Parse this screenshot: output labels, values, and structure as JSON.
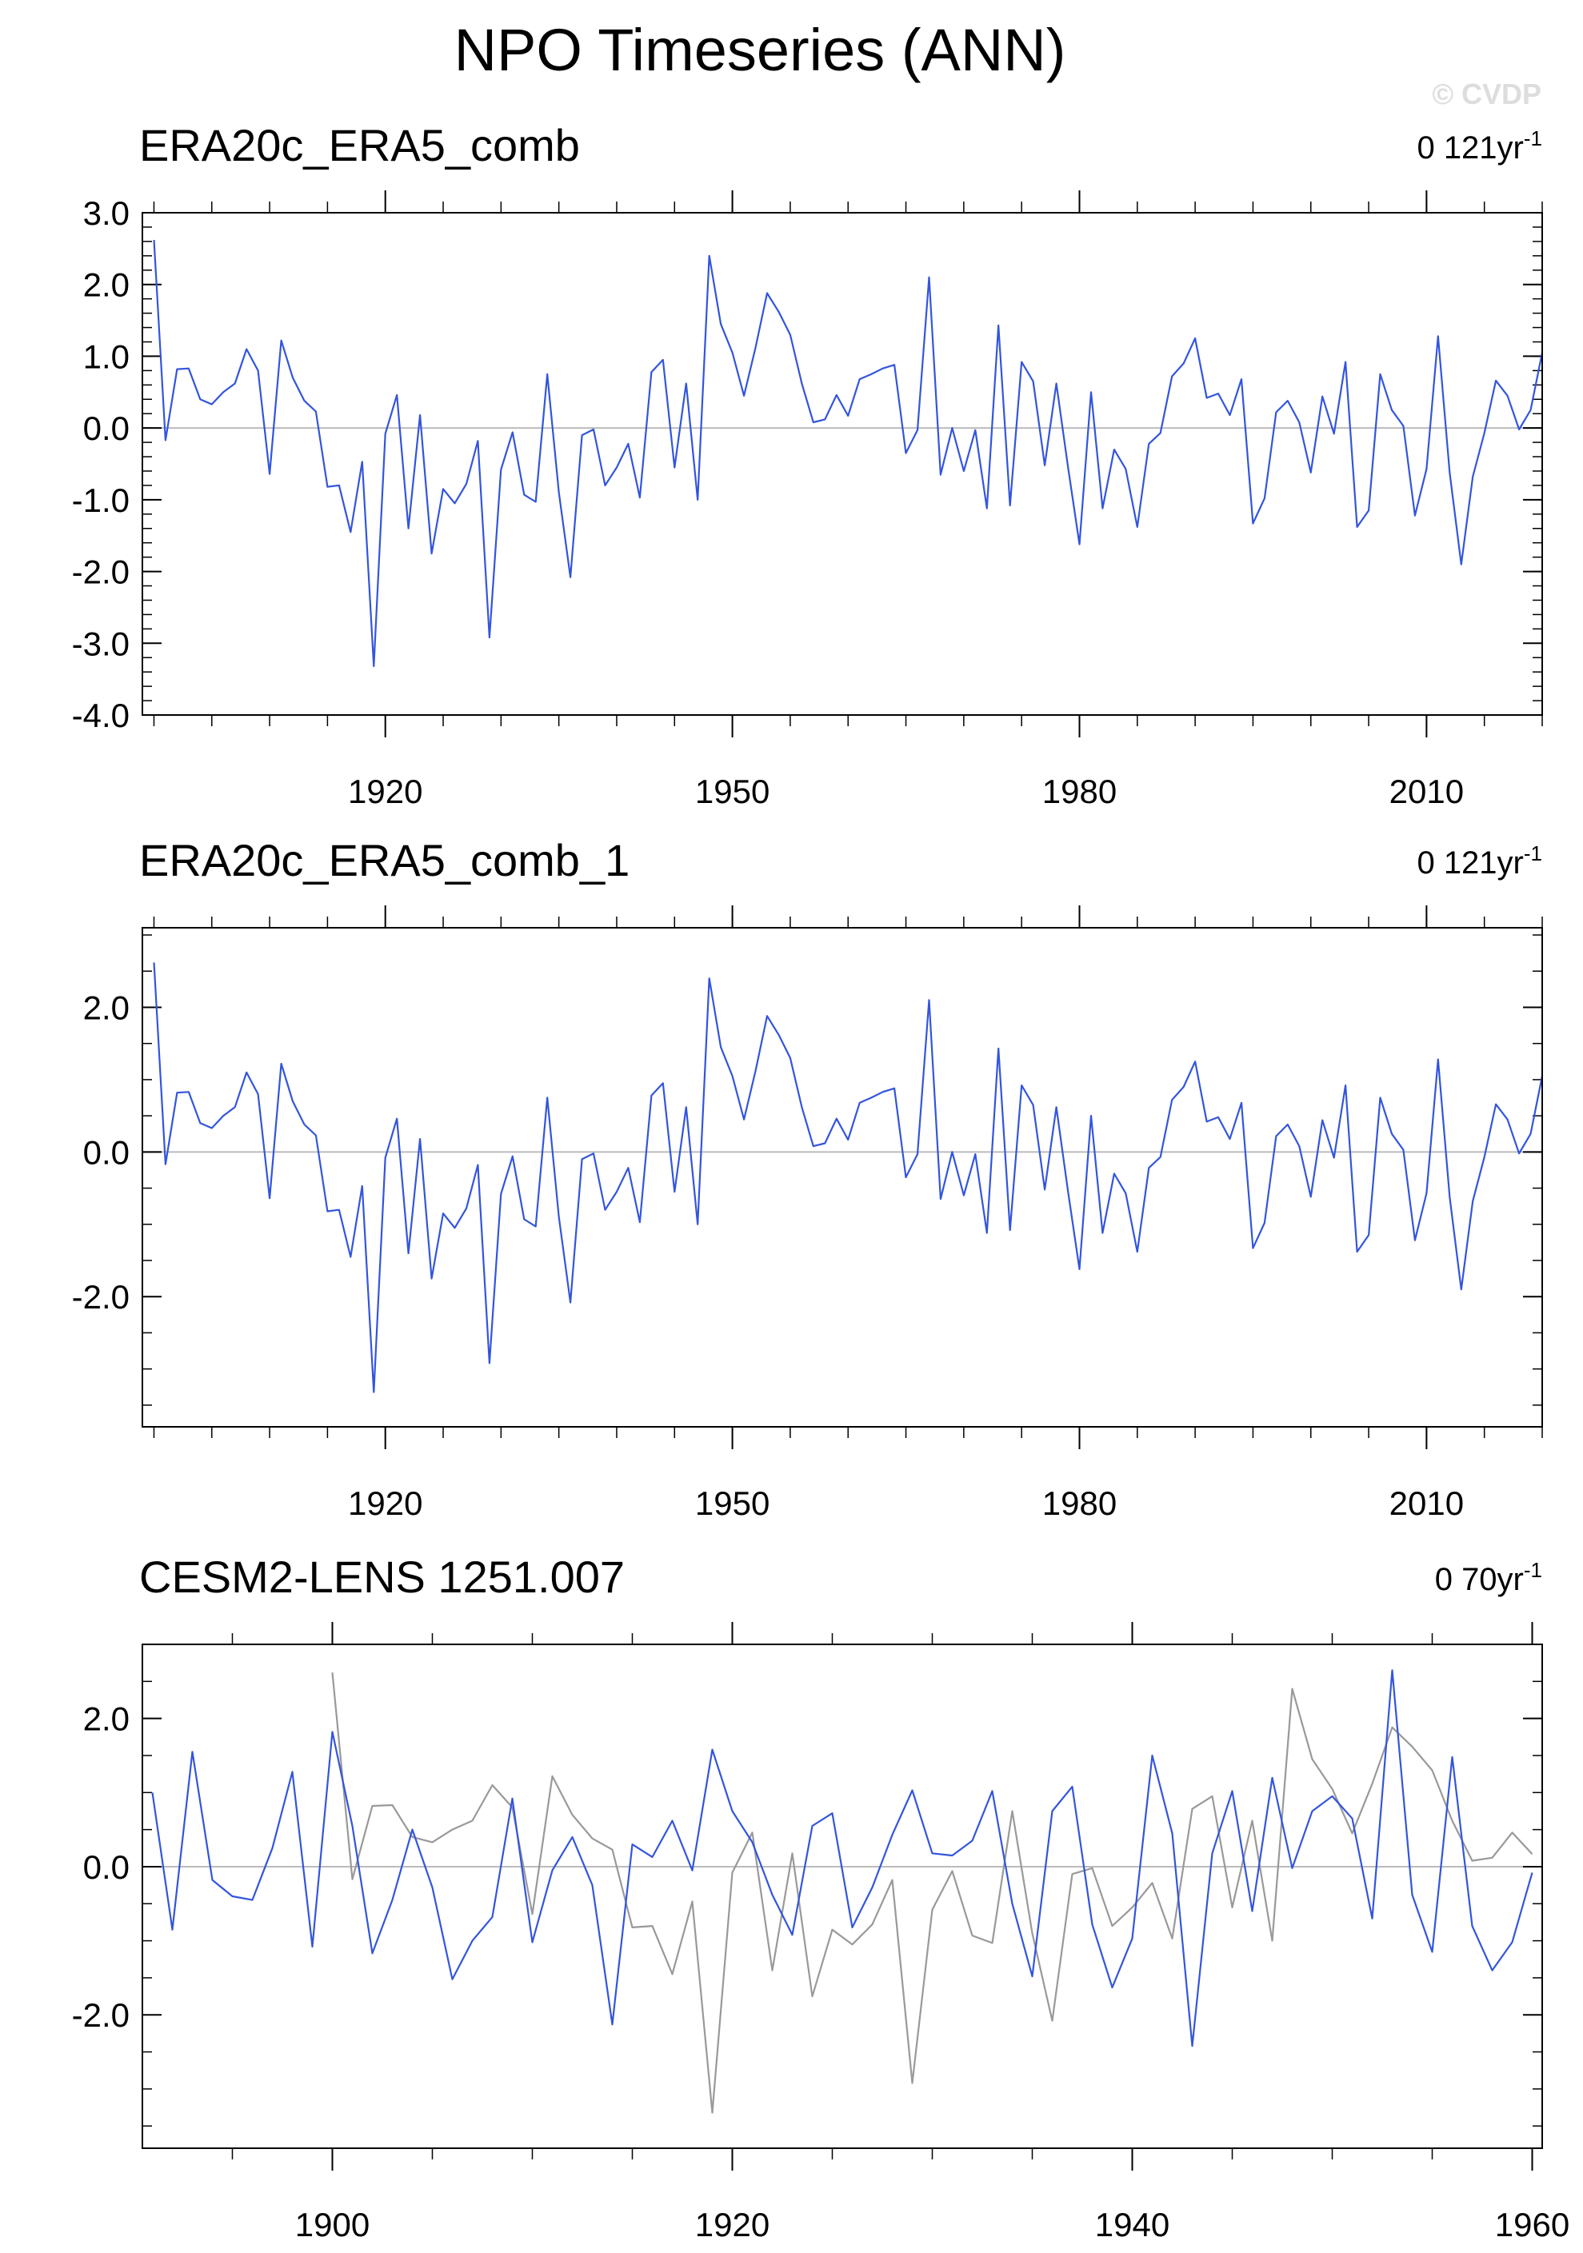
{
  "page": {
    "title": "NPO Timeseries (ANN)",
    "watermark": "© CVDP"
  },
  "chart_data": [
    {
      "type": "line",
      "title": "ERA20c_ERA5_comb",
      "trend_label": "0 121yr",
      "trend_exp": "-1",
      "xlim": [
        1899,
        2020
      ],
      "ylim": [
        -4.0,
        3.0
      ],
      "yticks": [
        -4.0,
        -3.0,
        -2.0,
        -1.0,
        0.0,
        1.0,
        2.0,
        3.0
      ],
      "yticklabels": [
        "-4.0",
        "-3.0",
        "-2.0",
        "-1.0",
        "0.0",
        "1.0",
        "2.0",
        "3.0"
      ],
      "xticks": [
        1920,
        1950,
        1980,
        2010
      ],
      "xticklabels": [
        "1920",
        "1950",
        "1980",
        "2010"
      ],
      "minor_x_step": 5,
      "minor_y_step": 0.2,
      "zero_line": true,
      "series": [
        {
          "color": "#3355dd",
          "x_start": 1900,
          "values": [
            2.62,
            -0.17,
            0.82,
            0.83,
            0.4,
            0.33,
            0.5,
            0.62,
            1.1,
            0.8,
            -0.64,
            1.22,
            0.7,
            0.38,
            0.23,
            -0.82,
            -0.8,
            -1.45,
            -0.47,
            -3.32,
            -0.08,
            0.46,
            -1.4,
            0.18,
            -1.75,
            -0.85,
            -1.05,
            -0.78,
            -0.18,
            -2.92,
            -0.58,
            -0.06,
            -0.93,
            -1.03,
            0.75,
            -0.9,
            -2.08,
            -0.1,
            -0.02,
            -0.8,
            -0.55,
            -0.22,
            -0.97,
            0.78,
            0.95,
            -0.55,
            0.62,
            -1.0,
            2.4,
            1.45,
            1.05,
            0.45,
            1.12,
            1.88,
            1.62,
            1.3,
            0.62,
            0.08,
            0.12,
            0.46,
            0.17,
            0.68,
            0.75,
            0.83,
            0.88,
            -0.35,
            -0.03,
            2.1,
            -0.65,
            0.0,
            -0.6,
            -0.03,
            -1.12,
            1.43,
            -1.08,
            0.92,
            0.65,
            -0.52,
            0.62,
            -0.53,
            -1.62,
            0.5,
            -1.12,
            -0.3,
            -0.57,
            -1.38,
            -0.22,
            -0.07,
            0.72,
            0.9,
            1.25,
            0.42,
            0.48,
            0.18,
            0.68,
            -1.33,
            -0.98,
            0.22,
            0.38,
            0.08,
            -0.62,
            0.44,
            -0.08,
            0.92,
            -1.38,
            -1.15,
            0.75,
            0.25,
            0.03,
            -1.22,
            -0.57,
            1.28,
            -0.62,
            -1.9,
            -0.68,
            -0.07,
            0.66,
            0.45,
            -0.02,
            0.25,
            1.05
          ]
        }
      ]
    },
    {
      "type": "line",
      "title": "ERA20c_ERA5_comb_1",
      "trend_label": "0 121yr",
      "trend_exp": "-1",
      "xlim": [
        1899,
        2020
      ],
      "ylim": [
        -3.8,
        3.1
      ],
      "yticks": [
        -2.0,
        0.0,
        2.0
      ],
      "yticklabels": [
        "-2.0",
        "0.0",
        "2.0"
      ],
      "xticks": [
        1920,
        1950,
        1980,
        2010
      ],
      "xticklabels": [
        "1920",
        "1950",
        "1980",
        "2010"
      ],
      "minor_x_step": 5,
      "minor_y_step": 0.5,
      "zero_line": true,
      "series": [
        {
          "color": "#3355dd",
          "x_start": 1900,
          "values": [
            2.62,
            -0.17,
            0.82,
            0.83,
            0.4,
            0.33,
            0.5,
            0.62,
            1.1,
            0.8,
            -0.64,
            1.22,
            0.7,
            0.38,
            0.23,
            -0.82,
            -0.8,
            -1.45,
            -0.47,
            -3.32,
            -0.08,
            0.46,
            -1.4,
            0.18,
            -1.75,
            -0.85,
            -1.05,
            -0.78,
            -0.18,
            -2.92,
            -0.58,
            -0.06,
            -0.93,
            -1.03,
            0.75,
            -0.9,
            -2.08,
            -0.1,
            -0.02,
            -0.8,
            -0.55,
            -0.22,
            -0.97,
            0.78,
            0.95,
            -0.55,
            0.62,
            -1.0,
            2.4,
            1.45,
            1.05,
            0.45,
            1.12,
            1.88,
            1.62,
            1.3,
            0.62,
            0.08,
            0.12,
            0.46,
            0.17,
            0.68,
            0.75,
            0.83,
            0.88,
            -0.35,
            -0.03,
            2.1,
            -0.65,
            0.0,
            -0.6,
            -0.03,
            -1.12,
            1.43,
            -1.08,
            0.92,
            0.65,
            -0.52,
            0.62,
            -0.53,
            -1.62,
            0.5,
            -1.12,
            -0.3,
            -0.57,
            -1.38,
            -0.22,
            -0.07,
            0.72,
            0.9,
            1.25,
            0.42,
            0.48,
            0.18,
            0.68,
            -1.33,
            -0.98,
            0.22,
            0.38,
            0.08,
            -0.62,
            0.44,
            -0.08,
            0.92,
            -1.38,
            -1.15,
            0.75,
            0.25,
            0.03,
            -1.22,
            -0.57,
            1.28,
            -0.62,
            -1.9,
            -0.68,
            -0.07,
            0.66,
            0.45,
            -0.02,
            0.25,
            1.05
          ]
        }
      ]
    },
    {
      "type": "line",
      "title": "CESM2-LENS 1251.007",
      "trend_label": "0 70yr",
      "trend_exp": "-1",
      "xlim": [
        1890.5,
        1960.5
      ],
      "ylim": [
        -3.8,
        3.0
      ],
      "yticks": [
        -2.0,
        0.0,
        2.0
      ],
      "yticklabels": [
        "-2.0",
        "0.0",
        "2.0"
      ],
      "xticks": [
        1900,
        1920,
        1940,
        1960
      ],
      "xticklabels": [
        "1900",
        "1920",
        "1940",
        "1960"
      ],
      "minor_x_step": 5,
      "minor_y_step": 0.5,
      "zero_line": true,
      "series": [
        {
          "color": "#999999",
          "x_start": 1900,
          "values": [
            2.62,
            -0.17,
            0.82,
            0.83,
            0.4,
            0.33,
            0.5,
            0.62,
            1.1,
            0.8,
            -0.64,
            1.22,
            0.7,
            0.38,
            0.23,
            -0.82,
            -0.8,
            -1.45,
            -0.47,
            -3.32,
            -0.08,
            0.46,
            -1.4,
            0.18,
            -1.75,
            -0.85,
            -1.05,
            -0.78,
            -0.18,
            -2.92,
            -0.58,
            -0.06,
            -0.93,
            -1.03,
            0.75,
            -0.9,
            -2.08,
            -0.1,
            -0.02,
            -0.8,
            -0.55,
            -0.22,
            -0.97,
            0.78,
            0.95,
            -0.55,
            0.62,
            -1.0,
            2.4,
            1.45,
            1.05,
            0.45,
            1.12,
            1.88,
            1.62,
            1.3,
            0.62,
            0.08,
            0.12,
            0.46,
            0.17
          ]
        },
        {
          "color": "#3355dd",
          "x_start": 1891,
          "values": [
            1.0,
            -0.85,
            1.55,
            -0.18,
            -0.4,
            -0.45,
            0.25,
            1.28,
            -1.08,
            1.82,
            0.55,
            -1.17,
            -0.45,
            0.5,
            -0.28,
            -1.52,
            -1.0,
            -0.68,
            0.92,
            -1.02,
            -0.05,
            0.4,
            -0.25,
            -2.13,
            0.3,
            0.13,
            0.62,
            -0.05,
            1.58,
            0.75,
            0.33,
            -0.38,
            -0.92,
            0.55,
            0.72,
            -0.82,
            -0.28,
            0.43,
            1.03,
            0.18,
            0.15,
            0.35,
            1.02,
            -0.5,
            -1.48,
            0.75,
            1.08,
            -0.78,
            -1.63,
            -0.97,
            1.5,
            0.45,
            -2.42,
            0.18,
            1.02,
            -0.6,
            1.2,
            -0.02,
            0.75,
            0.95,
            0.65,
            -0.7,
            2.65,
            -0.38,
            -1.15,
            1.48,
            -0.8,
            -1.4,
            -1.02,
            -0.08
          ]
        }
      ]
    }
  ]
}
